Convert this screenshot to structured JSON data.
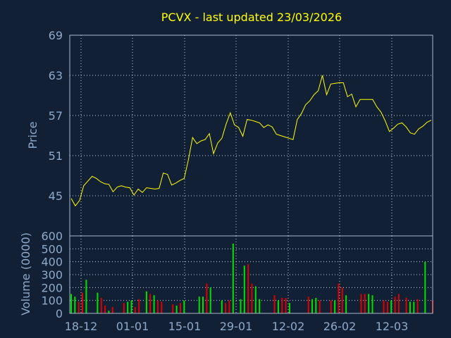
{
  "colors": {
    "background": "#112034",
    "frame": "#a9b9c9",
    "grid": "#c6d2de",
    "title": "#ffff00",
    "text": "#8fa9c8",
    "price_line": "#ffff00",
    "volume_up": "#00e000",
    "volume_down": "#e00000"
  },
  "chart_data": [
    {
      "type": "line",
      "title": "PCVX - last updated 23/03/2026",
      "xlabel": "",
      "ylabel": "Price",
      "ylim": [
        39,
        69
      ],
      "yticks": [
        45,
        51,
        57,
        63,
        69
      ],
      "grid": true,
      "x_tick_labels": [
        "18-12",
        "01-01",
        "15-01",
        "29-01",
        "12-02",
        "26-02",
        "12-03"
      ],
      "series": [
        {
          "values": [
            44.6,
            43.5,
            44.3,
            46.5,
            47.2,
            47.9,
            47.6,
            47.1,
            46.8,
            46.7,
            45.6,
            46.3,
            46.5,
            46.3,
            46.2,
            45.1,
            46.0,
            45.5,
            46.2,
            46.1,
            46.0,
            46.1,
            48.4,
            48.2,
            46.6,
            46.9,
            47.3,
            47.6,
            50.4,
            53.7,
            52.8,
            53.2,
            53.4,
            54.3,
            51.3,
            52.9,
            53.6,
            55.7,
            57.4,
            55.6,
            55.2,
            53.9,
            56.4,
            56.3,
            56.1,
            55.9,
            55.2,
            55.6,
            55.3,
            54.2,
            54.0,
            53.8,
            53.6,
            53.4,
            56.4,
            57.3,
            58.6,
            59.2,
            60.1,
            60.7,
            63.0,
            60.1,
            61.7,
            61.8,
            61.9,
            61.9,
            59.8,
            60.2,
            58.3,
            59.4,
            59.4,
            59.4,
            59.4,
            58.3,
            57.5,
            56.2,
            54.6,
            55.1,
            55.7,
            55.9,
            55.3,
            54.4,
            54.2,
            55.0,
            55.4,
            56.0,
            56.3
          ]
        }
      ]
    },
    {
      "type": "bar",
      "xlabel": "",
      "ylabel": "Volume (0000)",
      "ylim": [
        0,
        600
      ],
      "yticks": [
        0,
        100,
        200,
        300,
        400,
        500,
        600
      ],
      "grid": true,
      "x_tick_labels": [
        "18-12",
        "01-01",
        "15-01",
        "29-01",
        "12-02",
        "26-02",
        "12-03"
      ],
      "series": [
        {
          "values": [
            150,
            130,
            90,
            160,
            260,
            0,
            0,
            160,
            120,
            60,
            20,
            50,
            0,
            0,
            80,
            90,
            100,
            50,
            110,
            0,
            170,
            150,
            140,
            100,
            90,
            0,
            0,
            70,
            60,
            80,
            100,
            0,
            0,
            0,
            130,
            130,
            230,
            200,
            0,
            0,
            100,
            80,
            100,
            540,
            0,
            110,
            370,
            380,
            230,
            210,
            110,
            0,
            0,
            0,
            140,
            100,
            120,
            120,
            80,
            0,
            0,
            0,
            0,
            130,
            110,
            120,
            100,
            0,
            0,
            100,
            100,
            230,
            200,
            140,
            0,
            0,
            0,
            150,
            150,
            150,
            140,
            0,
            0,
            100,
            90,
            100,
            130,
            150,
            0,
            120,
            90,
            90,
            110,
            0,
            400,
            0,
            100
          ]
        }
      ]
    }
  ]
}
